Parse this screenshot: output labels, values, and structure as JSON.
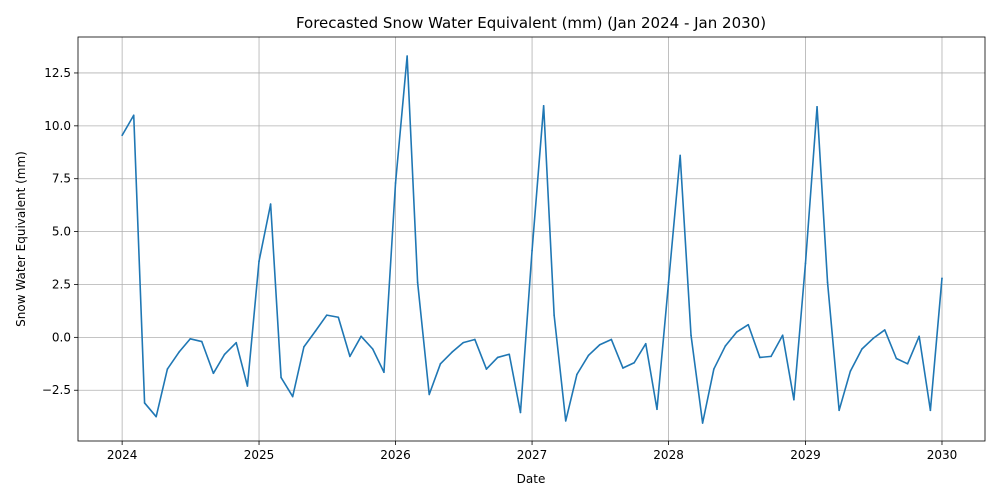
{
  "chart_data": {
    "type": "line",
    "title": "Forecasted Snow Water Equivalent (mm) (Jan 2024 - Jan 2030)",
    "xlabel": "Date",
    "ylabel": "Snow Water Equivalent (mm)",
    "xlim": [
      "2023-09-05",
      "2030-04-26"
    ],
    "ylim": [
      -4.9,
      14.2
    ],
    "x_ticks": [
      "2024",
      "2025",
      "2026",
      "2027",
      "2028",
      "2029",
      "2030"
    ],
    "y_ticks": [
      -2.5,
      0.0,
      2.5,
      5.0,
      7.5,
      10.0,
      12.5
    ],
    "y_tick_labels": [
      "−2.5",
      "0.0",
      "2.5",
      "5.0",
      "7.5",
      "10.0",
      "12.5"
    ],
    "grid": true,
    "colors": {
      "line": "#1f77b4",
      "grid": "#b0b0b0",
      "axes": "#000000"
    },
    "series": [
      {
        "x": [
          "2024-01-01",
          "2024-02-01",
          "2024-03-01",
          "2024-04-01",
          "2024-05-01",
          "2024-06-01",
          "2024-07-01",
          "2024-08-01",
          "2024-09-01",
          "2024-10-01",
          "2024-11-01",
          "2024-12-01",
          "2025-01-01",
          "2025-02-01",
          "2025-03-01",
          "2025-04-01",
          "2025-05-01",
          "2025-06-01",
          "2025-07-01",
          "2025-08-01",
          "2025-09-01",
          "2025-10-01",
          "2025-11-01",
          "2025-12-01",
          "2026-01-01",
          "2026-02-01",
          "2026-03-01",
          "2026-04-01",
          "2026-05-01",
          "2026-06-01",
          "2026-07-01",
          "2026-08-01",
          "2026-09-01",
          "2026-10-01",
          "2026-11-01",
          "2026-12-01",
          "2027-01-01",
          "2027-02-01",
          "2027-03-01",
          "2027-04-01",
          "2027-05-01",
          "2027-06-01",
          "2027-07-01",
          "2027-08-01",
          "2027-09-01",
          "2027-10-01",
          "2027-11-01",
          "2027-12-01",
          "2028-01-01",
          "2028-02-01",
          "2028-03-01",
          "2028-04-01",
          "2028-05-01",
          "2028-06-01",
          "2028-07-01",
          "2028-08-01",
          "2028-09-01",
          "2028-10-01",
          "2028-11-01",
          "2028-12-01",
          "2029-01-01",
          "2029-02-01",
          "2029-03-01",
          "2029-04-01",
          "2029-05-01",
          "2029-06-01",
          "2029-07-01",
          "2029-08-01",
          "2029-09-01",
          "2029-10-01",
          "2029-11-01",
          "2029-12-01",
          "2030-01-01"
        ],
        "values": [
          9.55,
          10.5,
          -3.1,
          -3.75,
          -1.5,
          -0.7,
          -0.07,
          -0.2,
          -1.7,
          -0.8,
          -0.25,
          -2.3,
          3.6,
          6.3,
          -1.9,
          -2.8,
          -0.45,
          0.3,
          1.05,
          0.95,
          -0.9,
          0.05,
          -0.55,
          -1.65,
          7.3,
          13.3,
          2.6,
          -2.7,
          -1.25,
          -0.7,
          -0.25,
          -0.1,
          -1.5,
          -0.95,
          -0.8,
          -3.55,
          4.1,
          10.95,
          1.05,
          -3.95,
          -1.75,
          -0.85,
          -0.35,
          -0.1,
          -1.45,
          -1.2,
          -0.3,
          -3.4,
          2.6,
          8.6,
          0.1,
          -4.05,
          -1.5,
          -0.4,
          0.25,
          0.6,
          -0.95,
          -0.9,
          0.1,
          -2.95,
          3.5,
          10.9,
          2.6,
          -3.45,
          -1.6,
          -0.55,
          -0.05,
          0.35,
          -1.0,
          -1.25,
          0.05,
          -3.45,
          2.8
        ]
      }
    ]
  }
}
